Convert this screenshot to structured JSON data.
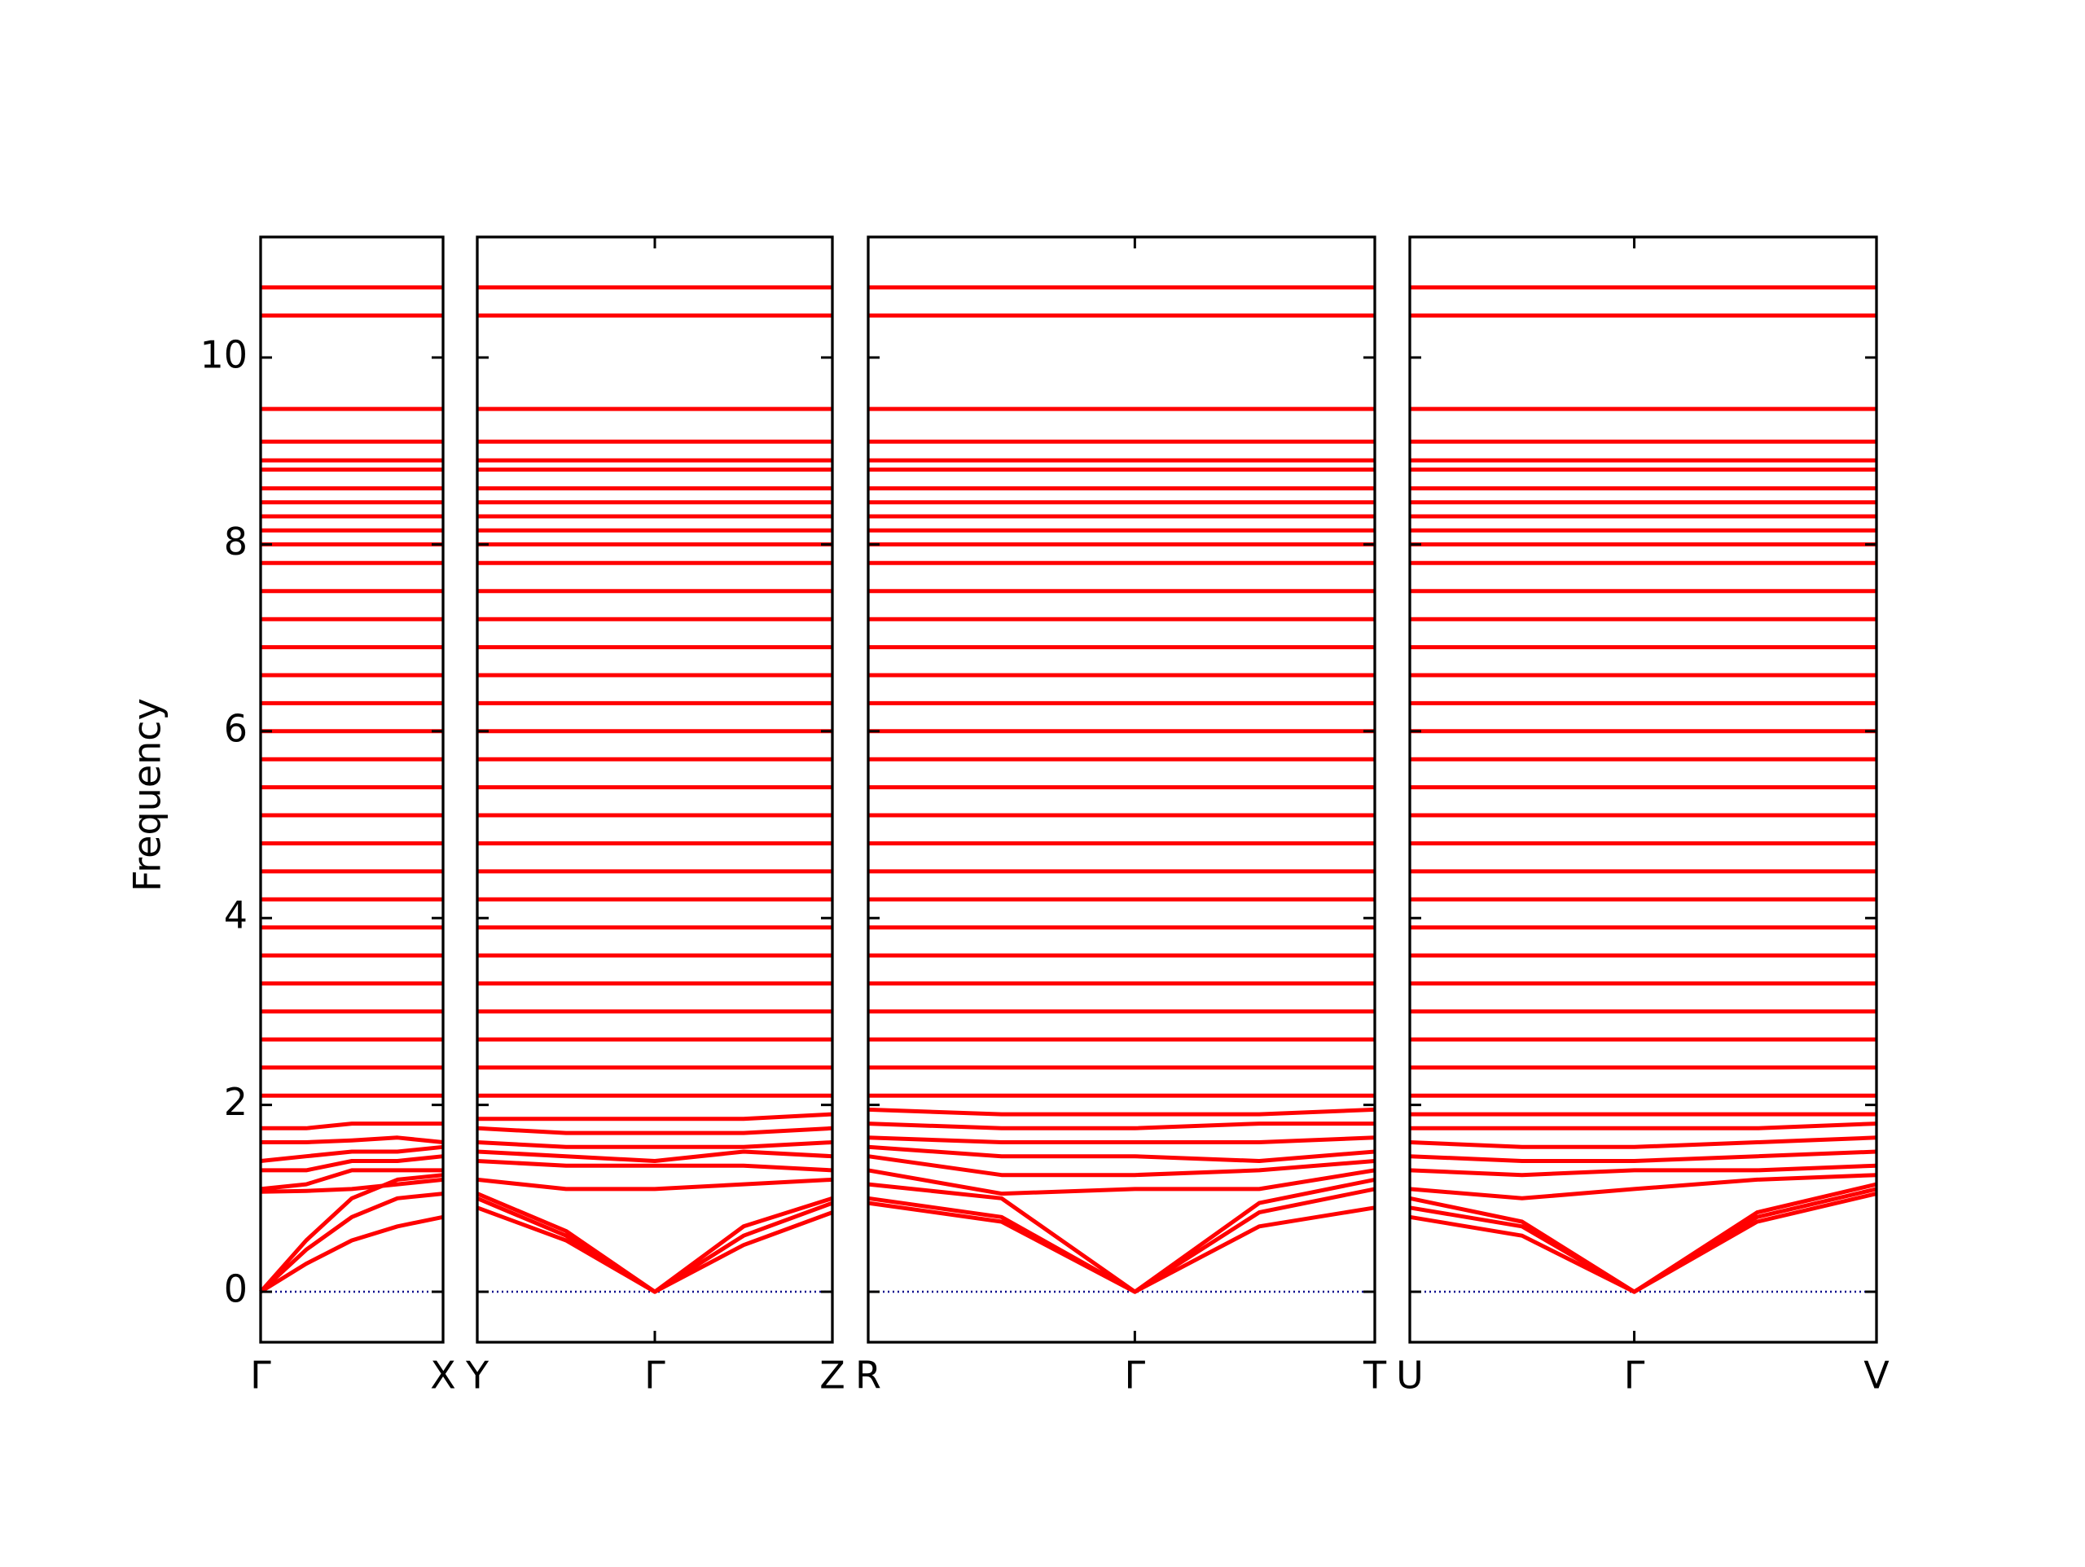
{
  "chart_data": [
    {
      "type": "line",
      "ylabel": "Frequency",
      "color": "#ff0000",
      "x": [
        0,
        0.25,
        0.5,
        0.75,
        1
      ],
      "xlim": [
        0,
        1
      ],
      "xticks": [
        {
          "value": 0,
          "label": "Γ"
        },
        {
          "value": 1,
          "label": "X"
        }
      ],
      "ylim": [
        -0.54,
        11.29
      ],
      "yticks": [
        0,
        2,
        4,
        6,
        8,
        10
      ],
      "bands": [
        [
          0,
          0.3,
          0.55,
          0.7,
          0.8
        ],
        [
          0,
          0.45,
          0.8,
          1.0,
          1.05
        ],
        [
          0,
          0.55,
          1.0,
          1.2,
          1.25
        ],
        [
          1.07,
          1.08,
          1.1,
          1.15,
          1.2
        ],
        [
          1.1,
          1.15,
          1.3,
          1.3,
          1.3
        ],
        [
          1.3,
          1.3,
          1.4,
          1.4,
          1.45
        ],
        [
          1.4,
          1.45,
          1.5,
          1.5,
          1.55
        ],
        [
          1.6,
          1.6,
          1.62,
          1.65,
          1.6
        ],
        [
          1.75,
          1.75,
          1.8,
          1.8,
          1.8
        ],
        [
          2.1,
          2.1,
          2.1,
          2.1,
          2.1
        ],
        [
          2.4,
          2.4,
          2.4,
          2.4,
          2.4
        ],
        [
          2.7,
          2.7,
          2.7,
          2.7,
          2.7
        ],
        [
          3.0,
          3.0,
          3.0,
          3.0,
          3.0
        ],
        [
          3.3,
          3.3,
          3.3,
          3.3,
          3.3
        ],
        [
          3.6,
          3.6,
          3.6,
          3.6,
          3.6
        ],
        [
          3.9,
          3.9,
          3.9,
          3.9,
          3.9
        ],
        [
          4.2,
          4.2,
          4.2,
          4.2,
          4.2
        ],
        [
          4.5,
          4.5,
          4.5,
          4.5,
          4.5
        ],
        [
          4.8,
          4.8,
          4.8,
          4.8,
          4.8
        ],
        [
          5.1,
          5.1,
          5.1,
          5.1,
          5.1
        ],
        [
          5.4,
          5.4,
          5.4,
          5.4,
          5.4
        ],
        [
          5.7,
          5.7,
          5.7,
          5.7,
          5.7
        ],
        [
          6.0,
          6.0,
          6.0,
          6.0,
          6.0
        ],
        [
          6.3,
          6.3,
          6.3,
          6.3,
          6.3
        ],
        [
          6.6,
          6.6,
          6.6,
          6.6,
          6.6
        ],
        [
          6.9,
          6.9,
          6.9,
          6.9,
          6.9
        ],
        [
          7.2,
          7.2,
          7.2,
          7.2,
          7.2
        ],
        [
          7.5,
          7.5,
          7.5,
          7.5,
          7.5
        ],
        [
          7.8,
          7.8,
          7.8,
          7.8,
          7.8
        ],
        [
          8.0,
          8.0,
          8.0,
          8.0,
          8.0
        ],
        [
          8.15,
          8.15,
          8.15,
          8.15,
          8.15
        ],
        [
          8.3,
          8.3,
          8.3,
          8.3,
          8.3
        ],
        [
          8.45,
          8.45,
          8.45,
          8.45,
          8.45
        ],
        [
          8.6,
          8.6,
          8.6,
          8.6,
          8.6
        ],
        [
          8.8,
          8.8,
          8.8,
          8.8,
          8.8
        ],
        [
          8.9,
          8.9,
          8.9,
          8.9,
          8.9
        ],
        [
          9.1,
          9.1,
          9.1,
          9.1,
          9.1
        ],
        [
          9.45,
          9.45,
          9.45,
          9.45,
          9.45
        ],
        [
          10.45,
          10.45,
          10.45,
          10.45,
          10.45
        ],
        [
          10.75,
          10.75,
          10.75,
          10.75,
          10.75
        ]
      ]
    },
    {
      "type": "line",
      "color": "#ff0000",
      "x": [
        0,
        0.5,
        1,
        1.5,
        2
      ],
      "xlim": [
        0,
        2
      ],
      "xticks": [
        {
          "value": 0,
          "label": "Y"
        },
        {
          "value": 1,
          "label": "Γ"
        },
        {
          "value": 2,
          "label": "Z"
        }
      ],
      "ylim": [
        -0.54,
        11.29
      ],
      "yticks": [
        0,
        2,
        4,
        6,
        8,
        10
      ],
      "bands": [
        [
          0.9,
          0.55,
          0,
          0.5,
          0.85
        ],
        [
          1.0,
          0.6,
          0,
          0.6,
          0.95
        ],
        [
          1.05,
          0.65,
          0,
          0.7,
          1.0
        ],
        [
          1.2,
          1.1,
          1.1,
          1.15,
          1.2
        ],
        [
          1.4,
          1.35,
          1.35,
          1.35,
          1.3
        ],
        [
          1.5,
          1.45,
          1.4,
          1.5,
          1.45
        ],
        [
          1.6,
          1.55,
          1.55,
          1.55,
          1.6
        ],
        [
          1.75,
          1.7,
          1.7,
          1.7,
          1.75
        ],
        [
          1.85,
          1.85,
          1.85,
          1.85,
          1.9
        ],
        [
          2.1,
          2.1,
          2.1,
          2.1,
          2.1
        ],
        [
          2.4,
          2.4,
          2.4,
          2.4,
          2.4
        ],
        [
          2.7,
          2.7,
          2.7,
          2.7,
          2.7
        ],
        [
          3.0,
          3.0,
          3.0,
          3.0,
          3.0
        ],
        [
          3.3,
          3.3,
          3.3,
          3.3,
          3.3
        ],
        [
          3.6,
          3.6,
          3.6,
          3.6,
          3.6
        ],
        [
          3.9,
          3.9,
          3.9,
          3.9,
          3.9
        ],
        [
          4.2,
          4.2,
          4.2,
          4.2,
          4.2
        ],
        [
          4.5,
          4.5,
          4.5,
          4.5,
          4.5
        ],
        [
          4.8,
          4.8,
          4.8,
          4.8,
          4.8
        ],
        [
          5.1,
          5.1,
          5.1,
          5.1,
          5.1
        ],
        [
          5.4,
          5.4,
          5.4,
          5.4,
          5.4
        ],
        [
          5.7,
          5.7,
          5.7,
          5.7,
          5.7
        ],
        [
          6.0,
          6.0,
          6.0,
          6.0,
          6.0
        ],
        [
          6.3,
          6.3,
          6.3,
          6.3,
          6.3
        ],
        [
          6.6,
          6.6,
          6.6,
          6.6,
          6.6
        ],
        [
          6.9,
          6.9,
          6.9,
          6.9,
          6.9
        ],
        [
          7.2,
          7.2,
          7.2,
          7.2,
          7.2
        ],
        [
          7.5,
          7.5,
          7.5,
          7.5,
          7.5
        ],
        [
          7.8,
          7.8,
          7.8,
          7.8,
          7.8
        ],
        [
          8.0,
          8.0,
          8.0,
          8.0,
          8.0
        ],
        [
          8.15,
          8.15,
          8.15,
          8.15,
          8.15
        ],
        [
          8.3,
          8.3,
          8.3,
          8.3,
          8.3
        ],
        [
          8.45,
          8.45,
          8.45,
          8.45,
          8.45
        ],
        [
          8.6,
          8.6,
          8.6,
          8.6,
          8.6
        ],
        [
          8.8,
          8.8,
          8.8,
          8.8,
          8.8
        ],
        [
          8.9,
          8.9,
          8.9,
          8.9,
          8.9
        ],
        [
          9.1,
          9.1,
          9.1,
          9.1,
          9.1
        ],
        [
          9.45,
          9.45,
          9.45,
          9.45,
          9.45
        ],
        [
          10.45,
          10.45,
          10.45,
          10.45,
          10.45
        ],
        [
          10.75,
          10.75,
          10.75,
          10.75,
          10.75
        ]
      ]
    },
    {
      "type": "line",
      "color": "#ff0000",
      "x": [
        0,
        0.75,
        1.5,
        2.2,
        2.85
      ],
      "xlim": [
        0,
        2.85
      ],
      "xticks": [
        {
          "value": 0,
          "label": "R"
        },
        {
          "value": 1.5,
          "label": "Γ"
        },
        {
          "value": 2.85,
          "label": "T"
        }
      ],
      "ylim": [
        -0.54,
        11.29
      ],
      "yticks": [
        0,
        2,
        4,
        6,
        8,
        10
      ],
      "bands": [
        [
          0.95,
          0.75,
          0,
          0.7,
          0.9
        ],
        [
          1.0,
          0.8,
          0,
          0.85,
          1.1
        ],
        [
          1.15,
          1.0,
          0,
          0.95,
          1.2
        ],
        [
          1.3,
          1.05,
          1.1,
          1.1,
          1.3
        ],
        [
          1.45,
          1.25,
          1.25,
          1.3,
          1.4
        ],
        [
          1.55,
          1.45,
          1.45,
          1.4,
          1.5
        ],
        [
          1.65,
          1.6,
          1.6,
          1.6,
          1.65
        ],
        [
          1.8,
          1.75,
          1.75,
          1.8,
          1.8
        ],
        [
          1.95,
          1.9,
          1.9,
          1.9,
          1.95
        ],
        [
          2.1,
          2.1,
          2.1,
          2.1,
          2.1
        ],
        [
          2.4,
          2.4,
          2.4,
          2.4,
          2.4
        ],
        [
          2.7,
          2.7,
          2.7,
          2.7,
          2.7
        ],
        [
          3.0,
          3.0,
          3.0,
          3.0,
          3.0
        ],
        [
          3.3,
          3.3,
          3.3,
          3.3,
          3.3
        ],
        [
          3.6,
          3.6,
          3.6,
          3.6,
          3.6
        ],
        [
          3.9,
          3.9,
          3.9,
          3.9,
          3.9
        ],
        [
          4.2,
          4.2,
          4.2,
          4.2,
          4.2
        ],
        [
          4.5,
          4.5,
          4.5,
          4.5,
          4.5
        ],
        [
          4.8,
          4.8,
          4.8,
          4.8,
          4.8
        ],
        [
          5.1,
          5.1,
          5.1,
          5.1,
          5.1
        ],
        [
          5.4,
          5.4,
          5.4,
          5.4,
          5.4
        ],
        [
          5.7,
          5.7,
          5.7,
          5.7,
          5.7
        ],
        [
          6.0,
          6.0,
          6.0,
          6.0,
          6.0
        ],
        [
          6.3,
          6.3,
          6.3,
          6.3,
          6.3
        ],
        [
          6.6,
          6.6,
          6.6,
          6.6,
          6.6
        ],
        [
          6.9,
          6.9,
          6.9,
          6.9,
          6.9
        ],
        [
          7.2,
          7.2,
          7.2,
          7.2,
          7.2
        ],
        [
          7.5,
          7.5,
          7.5,
          7.5,
          7.5
        ],
        [
          7.8,
          7.8,
          7.8,
          7.8,
          7.8
        ],
        [
          8.0,
          8.0,
          8.0,
          8.0,
          8.0
        ],
        [
          8.15,
          8.15,
          8.15,
          8.15,
          8.15
        ],
        [
          8.3,
          8.3,
          8.3,
          8.3,
          8.3
        ],
        [
          8.45,
          8.45,
          8.45,
          8.45,
          8.45
        ],
        [
          8.6,
          8.6,
          8.6,
          8.6,
          8.6
        ],
        [
          8.8,
          8.8,
          8.8,
          8.8,
          8.8
        ],
        [
          8.9,
          8.9,
          8.9,
          8.9,
          8.9
        ],
        [
          9.1,
          9.1,
          9.1,
          9.1,
          9.1
        ],
        [
          9.45,
          9.45,
          9.45,
          9.45,
          9.45
        ],
        [
          10.45,
          10.45,
          10.45,
          10.45,
          10.45
        ],
        [
          10.75,
          10.75,
          10.75,
          10.75,
          10.75
        ]
      ]
    },
    {
      "type": "line",
      "color": "#ff0000",
      "x": [
        0,
        0.63,
        1.26,
        1.95,
        2.62
      ],
      "xlim": [
        0,
        2.62
      ],
      "xticks": [
        {
          "value": 0,
          "label": "U"
        },
        {
          "value": 1.26,
          "label": "Γ"
        },
        {
          "value": 2.62,
          "label": "V"
        }
      ],
      "ylim": [
        -0.54,
        11.29
      ],
      "yticks": [
        0,
        2,
        4,
        6,
        8,
        10
      ],
      "bands": [
        [
          0.8,
          0.6,
          0,
          0.75,
          1.05
        ],
        [
          0.9,
          0.7,
          0,
          0.8,
          1.1
        ],
        [
          1.0,
          0.75,
          0,
          0.85,
          1.15
        ],
        [
          1.1,
          1.0,
          1.1,
          1.2,
          1.25
        ],
        [
          1.3,
          1.25,
          1.3,
          1.3,
          1.35
        ],
        [
          1.45,
          1.4,
          1.4,
          1.45,
          1.5
        ],
        [
          1.6,
          1.55,
          1.55,
          1.6,
          1.65
        ],
        [
          1.75,
          1.75,
          1.75,
          1.75,
          1.8
        ],
        [
          1.9,
          1.9,
          1.9,
          1.9,
          1.9
        ],
        [
          2.1,
          2.1,
          2.1,
          2.1,
          2.1
        ],
        [
          2.4,
          2.4,
          2.4,
          2.4,
          2.4
        ],
        [
          2.7,
          2.7,
          2.7,
          2.7,
          2.7
        ],
        [
          3.0,
          3.0,
          3.0,
          3.0,
          3.0
        ],
        [
          3.3,
          3.3,
          3.3,
          3.3,
          3.3
        ],
        [
          3.6,
          3.6,
          3.6,
          3.6,
          3.6
        ],
        [
          3.9,
          3.9,
          3.9,
          3.9,
          3.9
        ],
        [
          4.2,
          4.2,
          4.2,
          4.2,
          4.2
        ],
        [
          4.5,
          4.5,
          4.5,
          4.5,
          4.5
        ],
        [
          4.8,
          4.8,
          4.8,
          4.8,
          4.8
        ],
        [
          5.1,
          5.1,
          5.1,
          5.1,
          5.1
        ],
        [
          5.4,
          5.4,
          5.4,
          5.4,
          5.4
        ],
        [
          5.7,
          5.7,
          5.7,
          5.7,
          5.7
        ],
        [
          6.0,
          6.0,
          6.0,
          6.0,
          6.0
        ],
        [
          6.3,
          6.3,
          6.3,
          6.3,
          6.3
        ],
        [
          6.6,
          6.6,
          6.6,
          6.6,
          6.6
        ],
        [
          6.9,
          6.9,
          6.9,
          6.9,
          6.9
        ],
        [
          7.2,
          7.2,
          7.2,
          7.2,
          7.2
        ],
        [
          7.5,
          7.5,
          7.5,
          7.5,
          7.5
        ],
        [
          7.8,
          7.8,
          7.8,
          7.8,
          7.8
        ],
        [
          8.0,
          8.0,
          8.0,
          8.0,
          8.0
        ],
        [
          8.15,
          8.15,
          8.15,
          8.15,
          8.15
        ],
        [
          8.3,
          8.3,
          8.3,
          8.3,
          8.3
        ],
        [
          8.45,
          8.45,
          8.45,
          8.45,
          8.45
        ],
        [
          8.6,
          8.6,
          8.6,
          8.6,
          8.6
        ],
        [
          8.8,
          8.8,
          8.8,
          8.8,
          8.8
        ],
        [
          8.9,
          8.9,
          8.9,
          8.9,
          8.9
        ],
        [
          9.1,
          9.1,
          9.1,
          9.1,
          9.1
        ],
        [
          9.45,
          9.45,
          9.45,
          9.45,
          9.45
        ],
        [
          10.45,
          10.45,
          10.45,
          10.45,
          10.45
        ],
        [
          10.75,
          10.75,
          10.75,
          10.75,
          10.75
        ]
      ]
    }
  ]
}
